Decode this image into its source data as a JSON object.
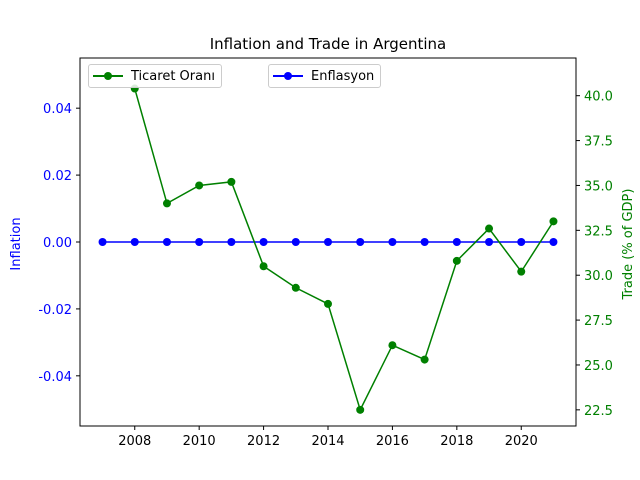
{
  "chart_data": {
    "type": "line",
    "title": "Inflation and Trade in Argentina",
    "x": [
      2007,
      2008,
      2009,
      2010,
      2011,
      2012,
      2013,
      2014,
      2015,
      2016,
      2017,
      2018,
      2019,
      2020,
      2021
    ],
    "x_ticks": [
      "2008",
      "2010",
      "2012",
      "2014",
      "2016",
      "2018",
      "2020"
    ],
    "xlim": [
      2006.3,
      2021.7
    ],
    "left_axis": {
      "label": "Inflation",
      "color": "#0000ff",
      "ylim": [
        -0.055,
        0.055
      ],
      "ticks": [
        "-0.04",
        "-0.02",
        "0.00",
        "0.02",
        "0.04"
      ]
    },
    "right_axis": {
      "label": "Trade (% of GDP)",
      "color": "#008000",
      "ylim": [
        21.6,
        42.1
      ],
      "ticks": [
        "22.5",
        "25.0",
        "27.5",
        "30.0",
        "32.5",
        "35.0",
        "37.5",
        "40.0"
      ]
    },
    "series": [
      {
        "name": "Enflasyon",
        "axis": "left",
        "color": "#0000ff",
        "x": [
          2007,
          2008,
          2009,
          2010,
          2011,
          2012,
          2013,
          2014,
          2015,
          2016,
          2017,
          2018,
          2019,
          2020,
          2021
        ],
        "values": [
          0,
          0,
          0,
          0,
          0,
          0,
          0,
          0,
          0,
          0,
          0,
          0,
          0,
          0,
          0
        ]
      },
      {
        "name": "Ticaret Oranı",
        "axis": "right",
        "color": "#008000",
        "x": [
          2008,
          2009,
          2010,
          2011,
          2012,
          2013,
          2014,
          2015,
          2016,
          2017,
          2018,
          2019,
          2020,
          2021
        ],
        "values": [
          40.4,
          34.0,
          35.0,
          35.2,
          30.5,
          29.3,
          28.4,
          22.5,
          26.1,
          25.3,
          30.8,
          32.6,
          30.2,
          33.0
        ]
      }
    ],
    "legend": [
      {
        "label": "Ticaret Oranı",
        "color": "#008000",
        "placement": "top-left"
      },
      {
        "label": "Enflasyon",
        "color": "#0000ff",
        "placement": "top-center"
      }
    ],
    "grid": false
  }
}
